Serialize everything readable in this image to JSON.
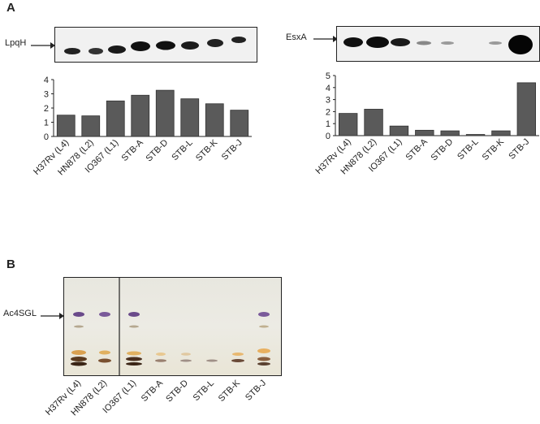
{
  "panel_a": {
    "letter": "A",
    "left": {
      "protein_label": "LpqH",
      "chart_data": {
        "type": "bar",
        "categories": [
          "H37Rv (L4)",
          "HN878 (L2)",
          "IO367 (L1)",
          "STB-A",
          "STB-D",
          "STB-L",
          "STB-K",
          "STB-J"
        ],
        "values": [
          1.5,
          1.45,
          2.5,
          2.9,
          3.25,
          2.65,
          2.3,
          1.85
        ],
        "ylim": [
          0,
          4
        ],
        "yticks": [
          "0",
          "1",
          "2",
          "3",
          "4"
        ],
        "bar_color": "#5a5a5a"
      }
    },
    "right": {
      "protein_label": "EsxA",
      "chart_data": {
        "type": "bar",
        "categories": [
          "H37Rv (L4)",
          "HN878 (L2)",
          "IO367 (L1)",
          "STB-A",
          "STB-D",
          "STB-L",
          "STB-K",
          "STB-J"
        ],
        "values": [
          1.85,
          2.2,
          0.8,
          0.45,
          0.4,
          0.1,
          0.4,
          4.4
        ],
        "ylim": [
          0,
          5
        ],
        "yticks": [
          "0",
          "1",
          "2",
          "3",
          "4",
          "5"
        ],
        "bar_color": "#5a5a5a"
      }
    }
  },
  "panel_b": {
    "letter": "B",
    "band_label": "Ac4SGL",
    "lanes": [
      "H37Rv (L4)",
      "HN878 (L2)",
      "IO367 (L1)",
      "STB-A",
      "STB-D",
      "STB-L",
      "STB-K",
      "STB-J"
    ]
  }
}
